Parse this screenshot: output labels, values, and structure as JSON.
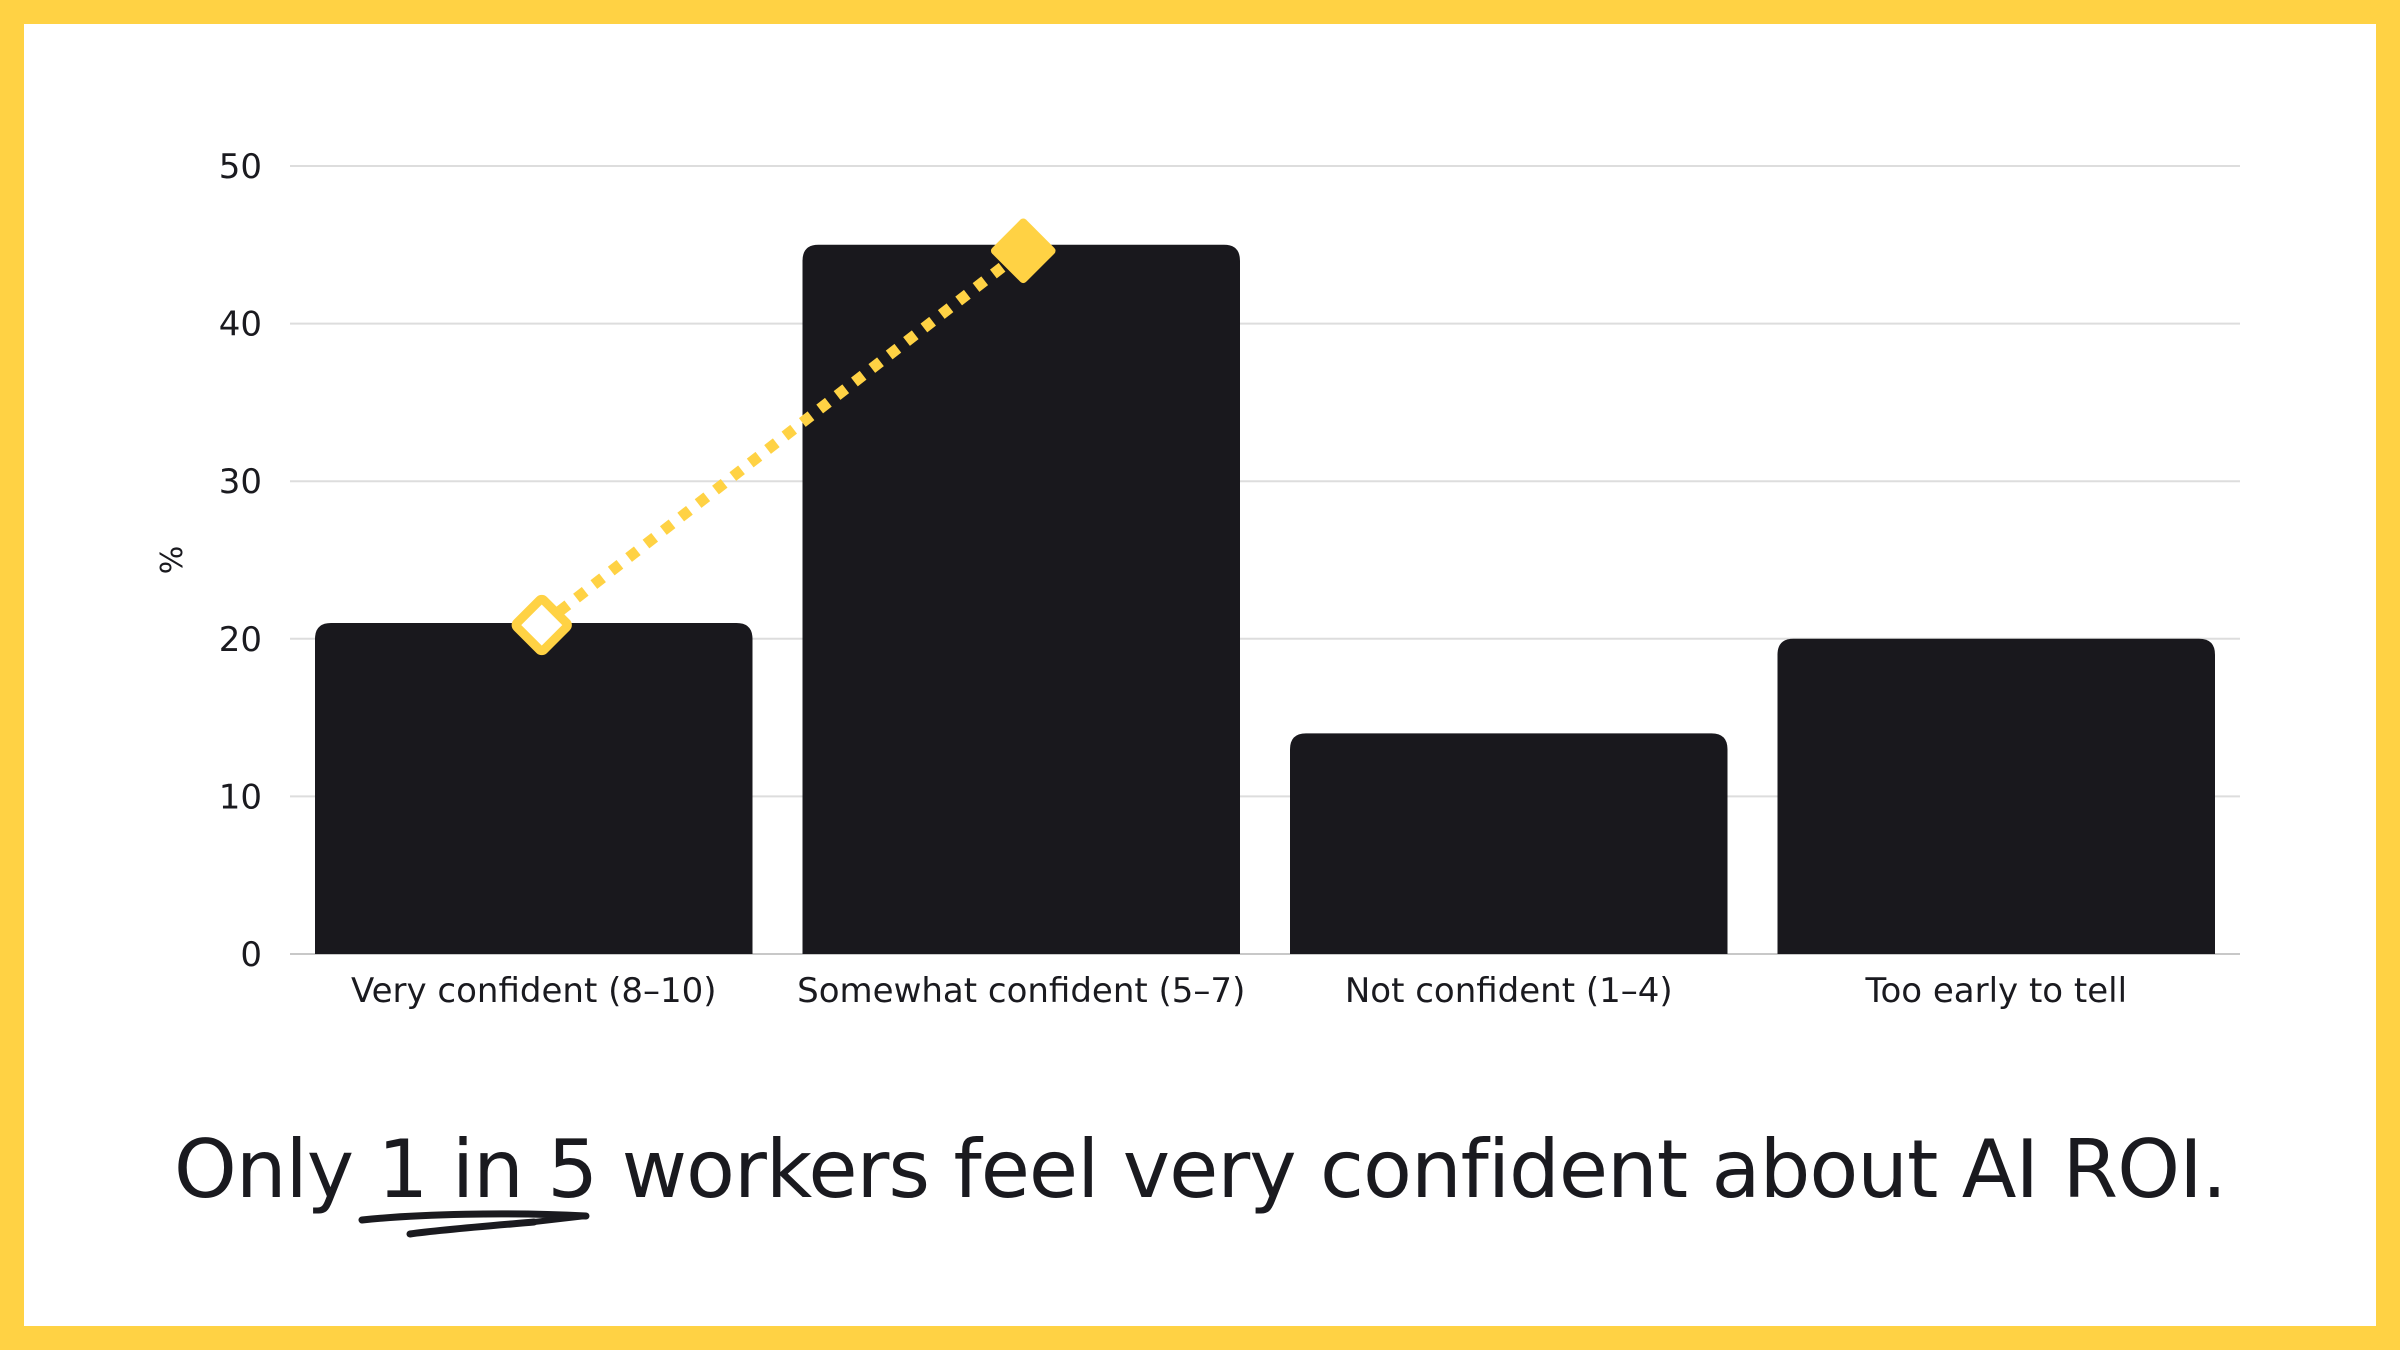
{
  "colors": {
    "frame": "#FFD244",
    "bar": "#19181D",
    "accent": "#FFD244",
    "grid": "#DDDDDD",
    "text": "#1A1A1F"
  },
  "chart_data": {
    "type": "bar",
    "categories": [
      "Very confident (8–10)",
      "Somewhat confident (5–7)",
      "Not confident (1–4)",
      "Too early to tell"
    ],
    "values": [
      21,
      45,
      14,
      20
    ],
    "ylabel": "%",
    "xlabel": "",
    "title": "",
    "ylim": [
      0,
      50
    ],
    "yticks": [
      0,
      10,
      20,
      30,
      40,
      50
    ],
    "grid": true,
    "annotation": {
      "type": "dotted-arrow",
      "from_category": "Very confident (8–10)",
      "to_category": "Somewhat confident (5–7)",
      "from_value": 21,
      "to_value": 45,
      "start_marker": "hollow-diamond",
      "end_marker": "filled-diamond"
    }
  },
  "caption": {
    "before": "Only ",
    "highlight": "1 in 5",
    "after": " workers feel very confident about AI ROI."
  }
}
